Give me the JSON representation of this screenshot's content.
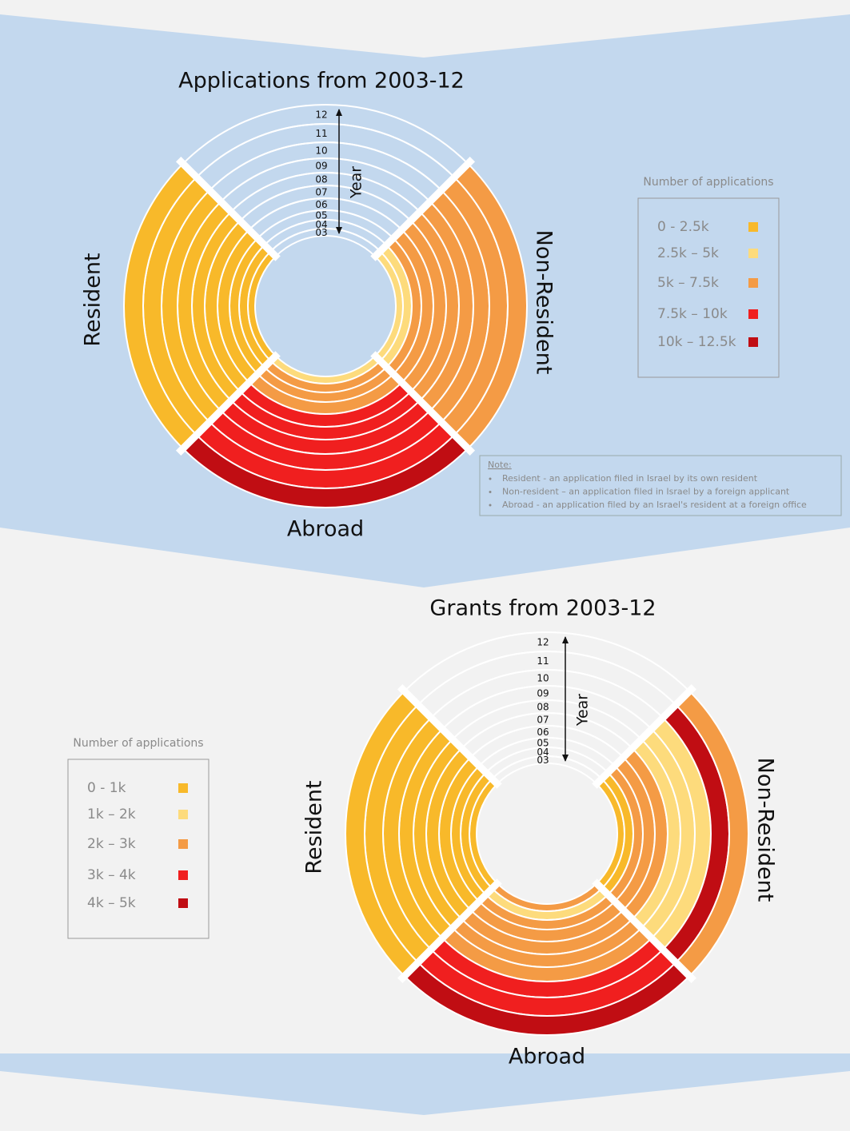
{
  "charts": [
    {
      "title": "Applications from 2003-12",
      "year_label": "Year",
      "years": [
        "03",
        "04",
        "05",
        "06",
        "07",
        "08",
        "09",
        "10",
        "11",
        "12"
      ],
      "groups": [
        {
          "name": "Resident",
          "colors": [
            "#f8b92a",
            "#f8b92a",
            "#f8b92a",
            "#f8b92a",
            "#f8b92a",
            "#f8b92a",
            "#f8b92a",
            "#f8b92a",
            "#f8b92a",
            "#f8b92a"
          ]
        },
        {
          "name": "Non-Resident",
          "colors": [
            "#fddb7c",
            "#fddb7c",
            "#f49b45",
            "#f49b45",
            "#f49b45",
            "#f49b45",
            "#f49b45",
            "#f49b45",
            "#f49b45",
            "#f49b45"
          ]
        },
        {
          "name": "Abroad",
          "colors": [
            "#fddb7c",
            "#f49b45",
            "#f49b45",
            "#f49b45",
            "#f01f1f",
            "#f01f1f",
            "#f01f1f",
            "#f01f1f",
            "#f01f1f",
            "#c00d13"
          ]
        }
      ],
      "legend": {
        "title": "Number of applications",
        "items": [
          {
            "label": "0 - 2.5k",
            "color": "#f8b92a"
          },
          {
            "label": "2.5k – 5k",
            "color": "#fddb7c"
          },
          {
            "label": "5k – 7.5k",
            "color": "#f49b45"
          },
          {
            "label": "7.5k – 10k",
            "color": "#f01f1f"
          },
          {
            "label": "10k – 12.5k",
            "color": "#c00d13"
          }
        ]
      }
    },
    {
      "title": "Grants from 2003-12",
      "year_label": "Year",
      "years": [
        "03",
        "04",
        "05",
        "06",
        "07",
        "08",
        "09",
        "10",
        "11",
        "12"
      ],
      "groups": [
        {
          "name": "Resident",
          "colors": [
            "#f8b92a",
            "#f8b92a",
            "#f8b92a",
            "#f8b92a",
            "#f8b92a",
            "#f8b92a",
            "#f8b92a",
            "#f8b92a",
            "#f8b92a",
            "#f8b92a"
          ]
        },
        {
          "name": "Non-Resident",
          "colors": [
            "#f8b92a",
            "#f8b92a",
            "#f49b45",
            "#f49b45",
            "#f49b45",
            "#fddb7c",
            "#fddb7c",
            "#fddb7c",
            "#c00d13",
            "#f49b45"
          ]
        },
        {
          "name": "Abroad",
          "colors": [
            "#f49b45",
            "#fddb7c",
            "#f49b45",
            "#f49b45",
            "#f49b45",
            "#f49b45",
            "#f49b45",
            "#f01f1f",
            "#f01f1f",
            "#c00d13"
          ]
        }
      ],
      "legend": {
        "title": "Number of applications",
        "items": [
          {
            "label": "0 - 1k",
            "color": "#f8b92a"
          },
          {
            "label": "1k – 2k",
            "color": "#fddb7c"
          },
          {
            "label": "2k – 3k",
            "color": "#f49b45"
          },
          {
            "label": "3k – 4k",
            "color": "#f01f1f"
          },
          {
            "label": "4k – 5k",
            "color": "#c00d13"
          }
        ]
      }
    }
  ],
  "note": {
    "title": "Note:",
    "items": [
      "Resident - an application filed in Israel by its own resident",
      "Non-resident – an application filed in Israel by a foreign applicant",
      "Abroad - an application filed by an Israel's resident at a foreign office"
    ]
  }
}
